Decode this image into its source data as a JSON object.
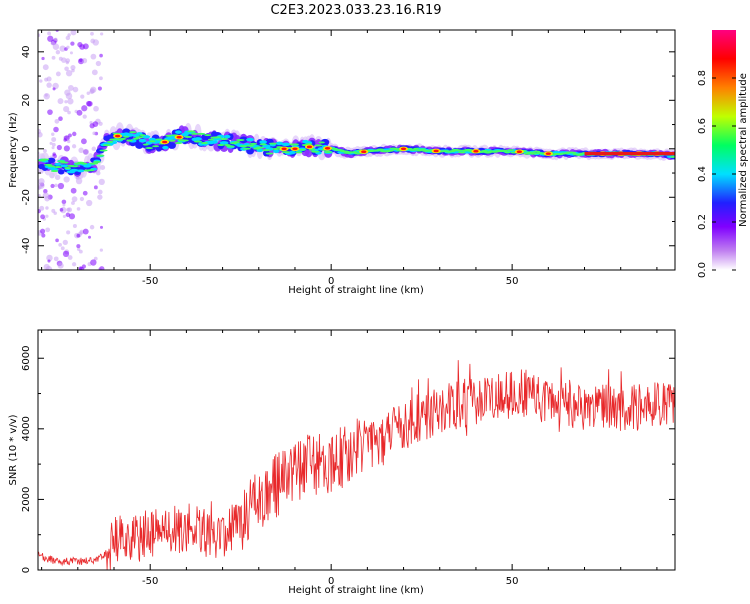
{
  "title": "C2E3.2023.033.23.16.R19",
  "chart_data": [
    {
      "type": "heatmap",
      "xlabel": "Height of straight line (km)",
      "ylabel": "Frequency (Hz)",
      "xlim": [
        -81,
        95
      ],
      "ylim": [
        -50,
        49
      ],
      "xticks": [
        -50,
        0,
        50
      ],
      "yticks": [
        -40,
        -20,
        0,
        20,
        40
      ],
      "colorbar": {
        "label": "Normalized spectral amplitude",
        "range": [
          0,
          1
        ],
        "ticks": [
          0.0,
          0.2,
          0.4,
          0.6,
          0.8
        ],
        "colors": [
          "#ffffff",
          "#c080f0",
          "#8000ff",
          "#2020ff",
          "#00e0ff",
          "#00ff60",
          "#c0ff00",
          "#ff8000",
          "#ff0000",
          "#ff0080"
        ]
      },
      "ridge": [
        {
          "x": -80,
          "f": -6
        },
        {
          "x": -75,
          "f": -7
        },
        {
          "x": -70,
          "f": -8
        },
        {
          "x": -65,
          "f": -6
        },
        {
          "x": -62,
          "f": 3
        },
        {
          "x": -58,
          "f": 6
        },
        {
          "x": -55,
          "f": 5
        },
        {
          "x": -50,
          "f": 2
        },
        {
          "x": -45,
          "f": 3
        },
        {
          "x": -40,
          "f": 6
        },
        {
          "x": -35,
          "f": 4
        },
        {
          "x": -30,
          "f": 3
        },
        {
          "x": -25,
          "f": 2
        },
        {
          "x": -20,
          "f": 1
        },
        {
          "x": -15,
          "f": 0
        },
        {
          "x": -10,
          "f": 0
        },
        {
          "x": -5,
          "f": 1
        },
        {
          "x": 0,
          "f": 0
        },
        {
          "x": 5,
          "f": -2
        },
        {
          "x": 10,
          "f": -1
        },
        {
          "x": 20,
          "f": 0
        },
        {
          "x": 30,
          "f": -1
        },
        {
          "x": 40,
          "f": -1
        },
        {
          "x": 50,
          "f": -1
        },
        {
          "x": 60,
          "f": -2
        },
        {
          "x": 70,
          "f": -2
        },
        {
          "x": 80,
          "f": -2
        },
        {
          "x": 90,
          "f": -2
        },
        {
          "x": 95,
          "f": -3
        }
      ],
      "hot_spots": [
        -59,
        -46,
        -42,
        -13,
        -10,
        -6,
        -1,
        9,
        20,
        29,
        40,
        52,
        60,
        75,
        80,
        85,
        90
      ]
    },
    {
      "type": "line",
      "xlabel": "Height of straight line (km)",
      "ylabel": "SNR (10 * v/v)",
      "xlim": [
        -81,
        95
      ],
      "ylim": [
        0,
        6800
      ],
      "xticks": [
        -50,
        0,
        50
      ],
      "yticks": [
        0,
        2000,
        4000,
        6000
      ],
      "color": "#e8282a",
      "series": [
        {
          "x": [
            -81,
            -78,
            -75,
            -72,
            -69,
            -66,
            -63,
            -60,
            -57,
            -54,
            -51,
            -48,
            -45,
            -42,
            -39,
            -36,
            -33,
            -30,
            -27,
            -24,
            -21,
            -18,
            -15,
            -12,
            -9,
            -6,
            -3,
            0,
            3,
            6,
            9,
            12,
            15,
            18,
            21,
            24,
            27,
            30,
            33,
            36,
            39,
            42,
            45,
            48,
            51,
            54,
            57,
            60,
            63,
            66,
            69,
            72,
            75,
            78,
            81,
            84,
            87,
            90,
            93,
            95
          ],
          "y": [
            400,
            300,
            250,
            250,
            260,
            280,
            350,
            800,
            950,
            900,
            1000,
            1100,
            1150,
            1100,
            1200,
            1100,
            900,
            800,
            1300,
            1500,
            1900,
            2200,
            2400,
            2600,
            2800,
            3000,
            3000,
            3100,
            3200,
            3400,
            3600,
            3500,
            3700,
            4000,
            4100,
            4300,
            4400,
            4600,
            4600,
            4700,
            4800,
            4800,
            4900,
            4900,
            5000,
            5000,
            4800,
            4800,
            4600,
            4700,
            4600,
            4600,
            4700,
            4600,
            4600,
            4600,
            4700,
            4600,
            4700,
            4700
          ]
        }
      ]
    }
  ]
}
